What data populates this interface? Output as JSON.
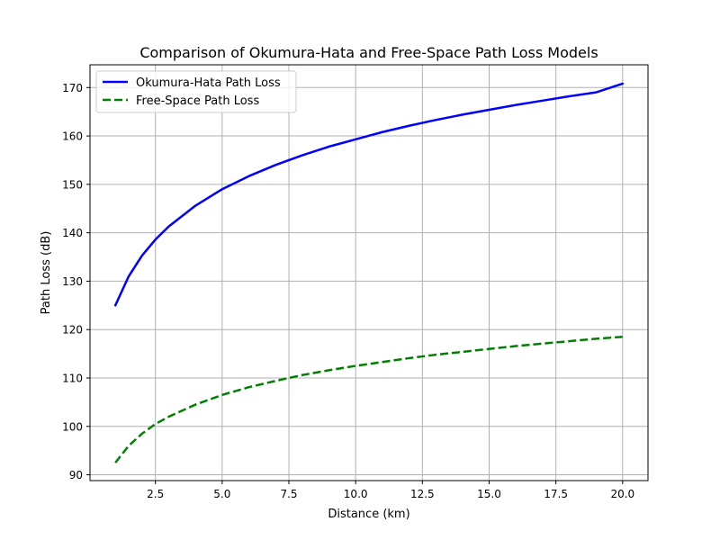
{
  "chart_data": {
    "type": "line",
    "title": "Comparison of Okumura-Hata and Free-Space Path Loss Models",
    "xlabel": "Distance (km)",
    "ylabel": "Path Loss (dB)",
    "xlim": [
      0.05,
      20.95
    ],
    "ylim": [
      88.8,
      174.7
    ],
    "xticks": [
      2.5,
      5.0,
      7.5,
      10.0,
      12.5,
      15.0,
      17.5,
      20.0
    ],
    "xtick_labels": [
      "2.5",
      "5.0",
      "7.5",
      "10.0",
      "12.5",
      "15.0",
      "17.5",
      "20.0"
    ],
    "yticks": [
      90,
      100,
      110,
      120,
      130,
      140,
      150,
      160,
      170
    ],
    "ytick_labels": [
      "90",
      "100",
      "110",
      "120",
      "130",
      "140",
      "150",
      "160",
      "170"
    ],
    "grid": true,
    "legend_position": "top-left",
    "series": [
      {
        "name": "Okumura-Hata Path Loss",
        "color": "#0000ff",
        "line_style": "solid",
        "x": [
          1,
          1.5,
          2,
          2.5,
          3,
          4,
          5,
          6,
          7,
          8,
          9,
          10,
          11,
          12,
          13,
          14,
          15,
          16,
          17,
          18,
          19,
          20
        ],
        "y": [
          125.0,
          131.0,
          135.3,
          138.6,
          141.3,
          145.6,
          149.0,
          151.7,
          154.0,
          156.0,
          157.8,
          159.3,
          160.8,
          162.1,
          163.3,
          164.4,
          165.4,
          166.4,
          167.3,
          168.2,
          169.0,
          170.8
        ]
      },
      {
        "name": "Free-Space Path Loss",
        "color": "#008000",
        "line_style": "dashed",
        "x": [
          1,
          1.5,
          2,
          2.5,
          3,
          4,
          5,
          6,
          7,
          8,
          9,
          10,
          11,
          12,
          13,
          14,
          15,
          16,
          17,
          18,
          19,
          20
        ],
        "y": [
          92.5,
          96.0,
          98.5,
          100.5,
          102.0,
          104.5,
          106.5,
          108.1,
          109.4,
          110.6,
          111.6,
          112.5,
          113.3,
          114.1,
          114.8,
          115.4,
          116.0,
          116.6,
          117.1,
          117.6,
          118.1,
          118.5
        ]
      }
    ]
  }
}
